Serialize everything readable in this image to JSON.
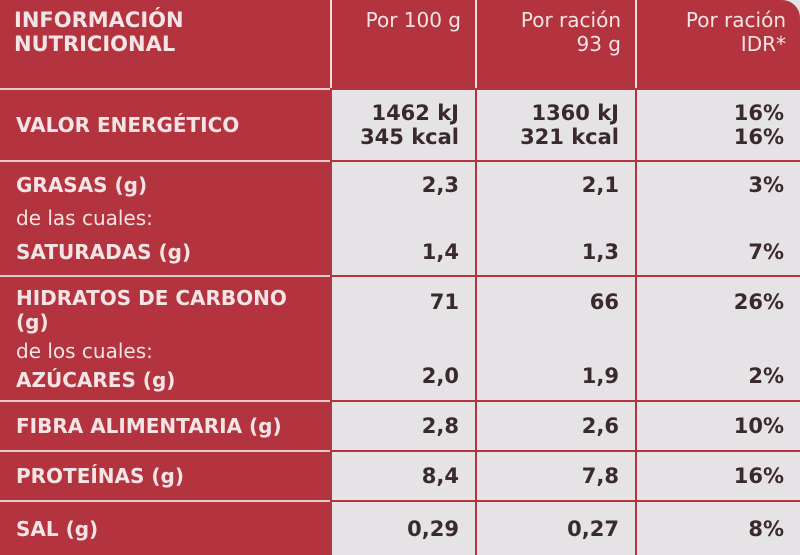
{
  "header": {
    "title": [
      "INFORMACIÓN",
      "NUTRICIONAL"
    ],
    "columns": [
      [
        "Por 100 g"
      ],
      [
        "Por ración",
        "93 g"
      ],
      [
        "Por ración",
        "IDR*"
      ]
    ]
  },
  "groups": [
    {
      "lines": [
        {
          "label": "VALOR ENERGÉTICO",
          "values": [
            [
              "1462 kJ",
              "345 kcal"
            ],
            [
              "1360 kJ",
              "321 kcal"
            ],
            [
              "16%",
              "16%"
            ]
          ]
        }
      ]
    },
    {
      "lines": [
        {
          "label": "GRASAS (g)",
          "values": [
            [
              "2,3"
            ],
            [
              "2,1"
            ],
            [
              "3%"
            ]
          ]
        },
        {
          "label": " de las cuales:"
        },
        {
          "label": "SATURADAS (g)",
          "values": [
            [
              "1,4"
            ],
            [
              "1,3"
            ],
            [
              "7%"
            ]
          ]
        }
      ]
    },
    {
      "lines": [
        {
          "label": "HIDRATOS DE CARBONO (g)",
          "values": [
            [
              "71"
            ],
            [
              "66"
            ],
            [
              "26%"
            ]
          ]
        },
        {
          "label": " de los cuales:"
        },
        {
          "label": "AZÚCARES (g)",
          "values": [
            [
              "2,0"
            ],
            [
              "1,9"
            ],
            [
              "2%"
            ]
          ]
        }
      ]
    },
    {
      "lines": [
        {
          "label": "FIBRA ALIMENTARIA (g)",
          "values": [
            [
              "2,8"
            ],
            [
              "2,6"
            ],
            [
              "10%"
            ]
          ]
        }
      ]
    },
    {
      "lines": [
        {
          "label": "PROTEÍNAS (g)",
          "values": [
            [
              "8,4"
            ],
            [
              "7,8"
            ],
            [
              "16%"
            ]
          ]
        }
      ]
    },
    {
      "lines": [
        {
          "label": "SAL (g)",
          "values": [
            [
              "0,29"
            ],
            [
              "0,27"
            ],
            [
              "8%"
            ]
          ]
        }
      ]
    }
  ]
}
